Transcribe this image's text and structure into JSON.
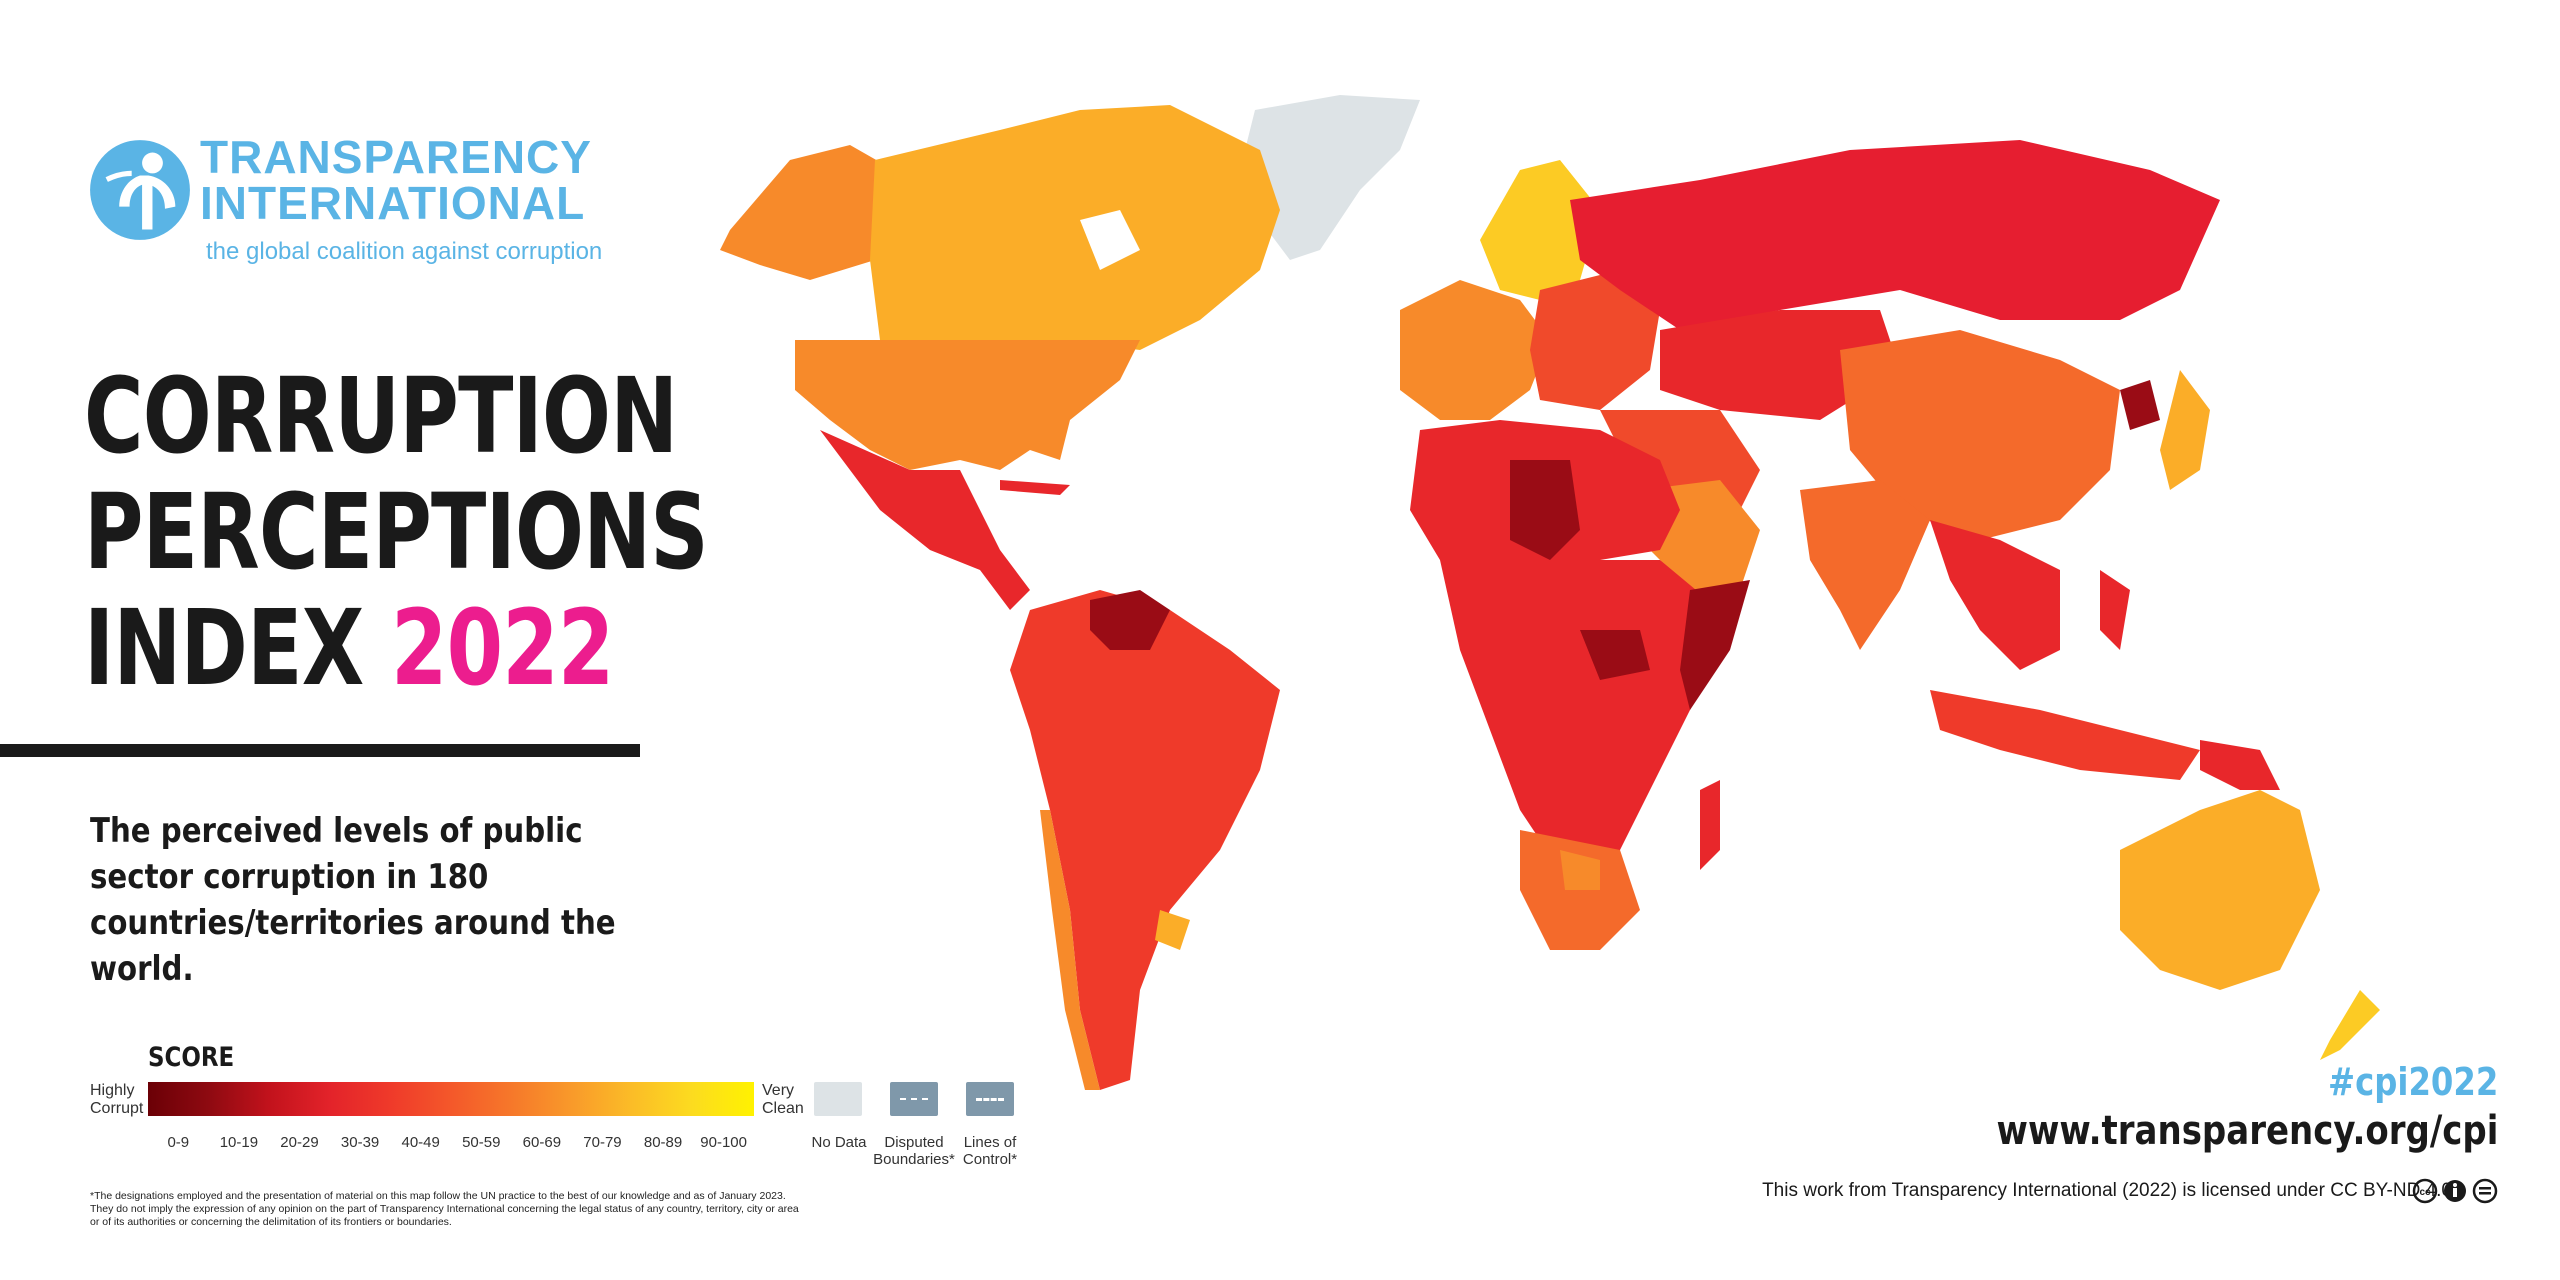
{
  "logo": {
    "name_line1": "TRANSPARENCY",
    "name_line2": "INTERNATIONAL",
    "tagline": "the global coalition against corruption",
    "color": "#5ab4e5"
  },
  "title": {
    "line1": "CORRUPTION",
    "line2": "PERCEPTIONS",
    "line3_prefix": "INDEX",
    "year": "2022",
    "year_color": "#ec1d8e"
  },
  "description": "The perceived levels of public sector corruption in 180 countries/territories around the world.",
  "legend": {
    "title": "SCORE",
    "low_label": "Highly Corrupt",
    "high_label": "Very Clean",
    "bins": [
      "0-9",
      "10-19",
      "20-29",
      "30-39",
      "40-49",
      "50-59",
      "60-69",
      "70-79",
      "80-89",
      "90-100"
    ],
    "bin_colors": [
      "#6b0006",
      "#9a0c15",
      "#d3141d",
      "#e8272b",
      "#f04a2b",
      "#f46a2b",
      "#f78a2a",
      "#fbad28",
      "#fccb24",
      "#fff200"
    ],
    "no_data": "No Data",
    "disputed": "Disputed Boundaries*",
    "lines_of_control": "Lines of Control*",
    "no_data_color": "#dde3e6",
    "boundary_color": "#7f98aa"
  },
  "footnote": "*The designations employed and the presentation of material on this map follow the UN practice to the best of our knowledge and as of January 2023. They do not imply the expression of any opinion on the part of Transparency International concerning the legal status of any country, territory, city or area or of its authorities or concerning the delimitation of its frontiers or boundaries.",
  "hashtag": "#cpi2022",
  "url": "www.transparency.org/cpi",
  "license": "This work from Transparency International (2022) is licensed under CC BY-ND 4.0",
  "map_regions": [
    {
      "name": "Canada",
      "color": "#fbad28"
    },
    {
      "name": "United States",
      "color": "#f78a2a"
    },
    {
      "name": "Greenland",
      "color": "#dde3e6"
    },
    {
      "name": "Alaska",
      "color": "#f78a2a"
    },
    {
      "name": "Mexico & Central America",
      "color": "#e8272b"
    },
    {
      "name": "South America",
      "color": "#ef3a2a"
    },
    {
      "name": "Venezuela",
      "color": "#9a0c15"
    },
    {
      "name": "Chile",
      "color": "#f78a2a"
    },
    {
      "name": "Uruguay",
      "color": "#fbad28"
    },
    {
      "name": "Western Europe",
      "color": "#f78a2a"
    },
    {
      "name": "Scandinavia",
      "color": "#fccb24"
    },
    {
      "name": "Eastern Europe",
      "color": "#f04a2b"
    },
    {
      "name": "Russia",
      "color": "#e61e30"
    },
    {
      "name": "Central Asia",
      "color": "#e8272b"
    },
    {
      "name": "China",
      "color": "#f46a2b"
    },
    {
      "name": "India",
      "color": "#f46a2b"
    },
    {
      "name": "Middle East",
      "color": "#f04a2b"
    },
    {
      "name": "Saudi Arabia",
      "color": "#f78a2a"
    },
    {
      "name": "North Africa",
      "color": "#e8272b"
    },
    {
      "name": "Libya",
      "color": "#9a0c15"
    },
    {
      "name": "Central Africa",
      "color": "#e8272b"
    },
    {
      "name": "Southern Africa",
      "color": "#f46a2b"
    },
    {
      "name": "Botswana",
      "color": "#f78a2a"
    },
    {
      "name": "Madagascar",
      "color": "#e8272b"
    },
    {
      "name": "Southeast Asia",
      "color": "#e8272b"
    },
    {
      "name": "Indonesia",
      "color": "#ef3a2a"
    },
    {
      "name": "Papua New Guinea",
      "color": "#e8272b"
    },
    {
      "name": "Japan",
      "color": "#fbad28"
    },
    {
      "name": "North Korea",
      "color": "#9a0c15"
    },
    {
      "name": "Australia",
      "color": "#fbad28"
    },
    {
      "name": "New Zealand",
      "color": "#fccb24"
    }
  ]
}
